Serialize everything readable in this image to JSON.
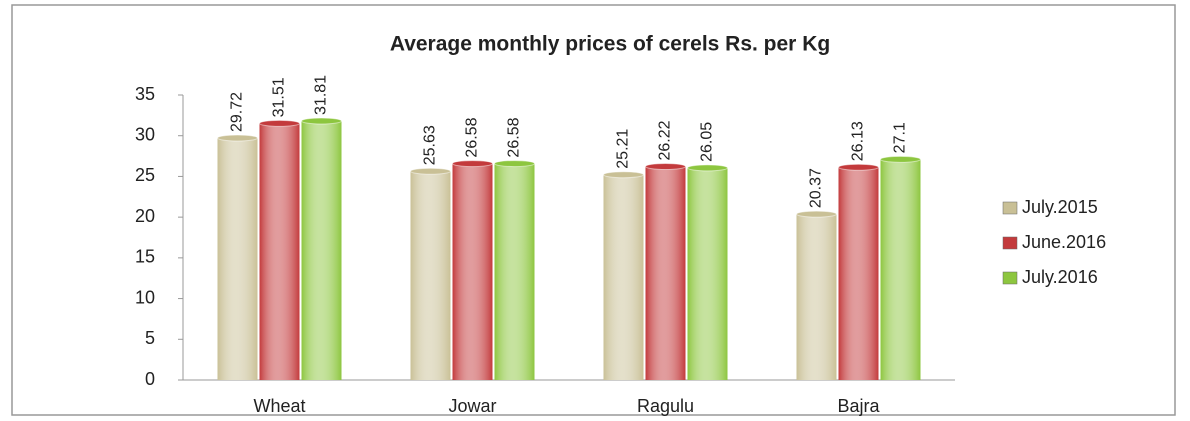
{
  "chart_data": {
    "type": "bar",
    "title": "Average monthly prices of cerels Rs. per Kg",
    "categories": [
      "Wheat",
      "Jowar",
      "Ragulu",
      "Bajra"
    ],
    "series": [
      {
        "name": "July.2015",
        "color": "#c9c096",
        "values": [
          29.72,
          25.63,
          25.21,
          20.37
        ]
      },
      {
        "name": "June.2016",
        "color": "#c33a3c",
        "values": [
          31.51,
          26.58,
          26.22,
          26.13
        ]
      },
      {
        "name": "July.2016",
        "color": "#8dc63f",
        "values": [
          31.81,
          26.58,
          26.05,
          27.1
        ]
      }
    ],
    "ylim": [
      0,
      35
    ],
    "yticks": [
      0,
      5,
      10,
      15,
      20,
      25,
      30,
      35
    ],
    "grid": false,
    "legend": "right"
  }
}
